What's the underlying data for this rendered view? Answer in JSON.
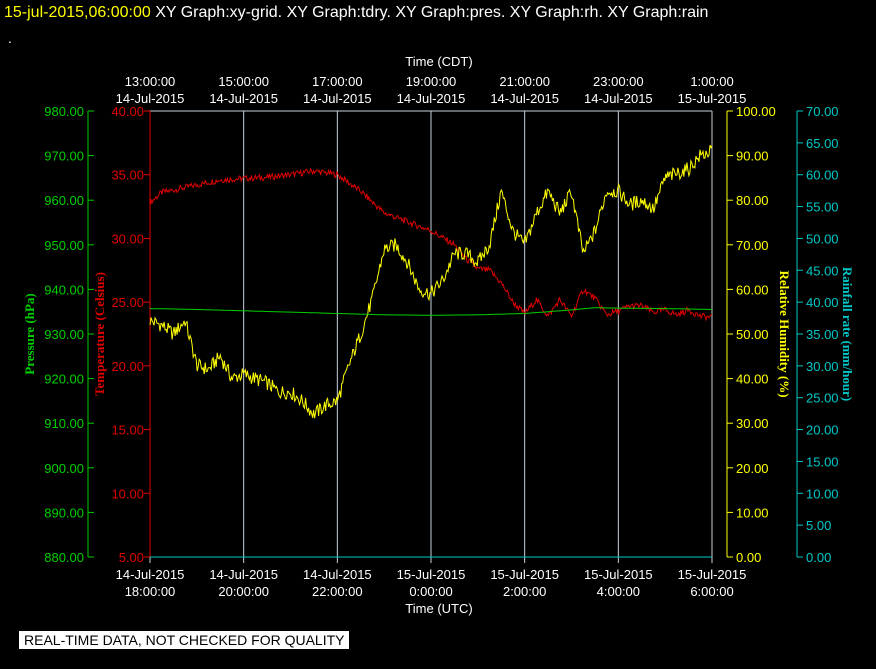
{
  "header": {
    "timestamp": "15-jul-2015,06:00:00",
    "graphs": [
      "XY Graph:xy-grid.",
      "XY Graph:tdry.",
      "XY Graph:pres.",
      "XY Graph:rh.",
      "XY Graph:rain"
    ],
    "dot": "."
  },
  "quality_banner": "REAL-TIME DATA, NOT CHECKED FOR QUALITY",
  "colors": {
    "background": "#000000",
    "grid": "#c8d2dc",
    "pressure": "#00d000",
    "temperature": "#e00000",
    "humidity": "#ffff00",
    "rain": "#00c8c8",
    "axis_text": "#ffffff"
  },
  "chart_data": {
    "type": "line",
    "x_top": {
      "title": "Time (CDT)",
      "ticks": [
        {
          "time": "13:00:00",
          "date": "14-Jul-2015"
        },
        {
          "time": "15:00:00",
          "date": "14-Jul-2015"
        },
        {
          "time": "17:00:00",
          "date": "14-Jul-2015"
        },
        {
          "time": "19:00:00",
          "date": "14-Jul-2015"
        },
        {
          "time": "21:00:00",
          "date": "14-Jul-2015"
        },
        {
          "time": "23:00:00",
          "date": "14-Jul-2015"
        },
        {
          "time": "1:00:00",
          "date": "15-Jul-2015"
        }
      ]
    },
    "x_bottom": {
      "title": "Time (UTC)",
      "ticks": [
        {
          "date": "14-Jul-2015",
          "time": "18:00:00"
        },
        {
          "date": "14-Jul-2015",
          "time": "20:00:00"
        },
        {
          "date": "14-Jul-2015",
          "time": "22:00:00"
        },
        {
          "date": "15-Jul-2015",
          "time": "0:00:00"
        },
        {
          "date": "15-Jul-2015",
          "time": "2:00:00"
        },
        {
          "date": "15-Jul-2015",
          "time": "4:00:00"
        },
        {
          "date": "15-Jul-2015",
          "time": "6:00:00"
        }
      ],
      "range": [
        "2015-07-14 18:00:00",
        "2015-07-15 06:00:00"
      ]
    },
    "grid": true,
    "axes": {
      "pressure": {
        "label": "Pressure (hPa)",
        "range": [
          880,
          980
        ],
        "ticks": [
          "980.00",
          "970.00",
          "960.00",
          "950.00",
          "940.00",
          "930.00",
          "920.00",
          "910.00",
          "900.00",
          "890.00",
          "880.00"
        ]
      },
      "temperature": {
        "label": "Temperature (Celsius)",
        "range": [
          5,
          40
        ],
        "ticks": [
          "40.00",
          "35.00",
          "30.00",
          "25.00",
          "20.00",
          "15.00",
          "10.00",
          "5.00"
        ]
      },
      "humidity": {
        "label": "Relative Humidity (%)",
        "range": [
          0,
          100
        ],
        "ticks": [
          "100.00",
          "90.00",
          "80.00",
          "70.00",
          "60.00",
          "50.00",
          "40.00",
          "30.00",
          "20.00",
          "10.00",
          "0.00"
        ]
      },
      "rain": {
        "label": "Rainfall rate (mm/hour)",
        "range": [
          0,
          70
        ],
        "ticks": [
          "70.00",
          "65.00",
          "60.00",
          "55.00",
          "50.00",
          "45.00",
          "40.00",
          "35.00",
          "30.00",
          "25.00",
          "20.00",
          "15.00",
          "10.00",
          "5.00",
          "0.00"
        ]
      }
    },
    "series": [
      {
        "name": "Temperature",
        "axis": "temperature",
        "noise": 0.25,
        "x": [
          0,
          0.25,
          0.5,
          1,
          1.5,
          2,
          2.5,
          3,
          3.5,
          4,
          4.5,
          5,
          5.5,
          6,
          6.5,
          6.75,
          7,
          7.25,
          7.5,
          7.75,
          8,
          8.25,
          8.5,
          8.75,
          9,
          9.25,
          9.5,
          9.75,
          10,
          10.25,
          10.5,
          10.75,
          11,
          11.25,
          11.5,
          11.75,
          12
        ],
        "y": [
          32.8,
          33.6,
          33.8,
          34.2,
          34.6,
          34.7,
          34.8,
          35.0,
          35.3,
          35.0,
          33.7,
          32.0,
          31.3,
          30.6,
          29.5,
          28.4,
          27.6,
          27.5,
          26.5,
          25.0,
          24.1,
          25.2,
          23.9,
          25.2,
          23.9,
          26.0,
          25.3,
          24.0,
          24.3,
          24.7,
          24.7,
          24.2,
          24.4,
          24.0,
          24.4,
          23.9,
          23.8
        ]
      },
      {
        "name": "Relative Humidity",
        "axis": "humidity",
        "noise": 1.6,
        "x": [
          0,
          0.25,
          0.5,
          0.75,
          1,
          1.25,
          1.5,
          1.75,
          2,
          2.25,
          2.5,
          2.75,
          3,
          3.25,
          3.5,
          3.75,
          4,
          4.25,
          4.5,
          4.75,
          5,
          5.25,
          5.5,
          5.75,
          6,
          6.25,
          6.5,
          6.75,
          7,
          7.25,
          7.5,
          7.75,
          8,
          8.25,
          8.5,
          8.75,
          9,
          9.25,
          9.5,
          9.75,
          10,
          10.25,
          10.5,
          10.75,
          11,
          11.25,
          11.5,
          11.75,
          12
        ],
        "y": [
          53,
          52,
          50,
          53,
          43,
          42,
          45,
          40,
          41,
          40,
          39,
          37,
          37,
          35,
          32,
          34,
          35,
          43,
          50,
          58,
          69,
          70,
          66,
          60,
          59,
          62,
          68,
          68,
          66,
          70,
          82,
          73,
          70,
          77,
          82,
          77,
          82,
          68,
          73,
          82,
          82,
          79,
          80,
          78,
          85,
          86,
          87,
          90,
          91
        ]
      },
      {
        "name": "Pressure",
        "axis": "pressure",
        "noise": 0,
        "x": [
          0,
          1,
          2,
          3,
          4,
          5,
          6,
          7,
          8,
          9,
          9.5,
          10,
          11,
          12
        ],
        "y": [
          935.7,
          935.5,
          935.2,
          934.9,
          934.6,
          934.3,
          934.2,
          934.3,
          934.6,
          935.4,
          935.9,
          935.8,
          935.7,
          935.5
        ]
      },
      {
        "name": "Rainfall rate",
        "axis": "rain",
        "noise": 0,
        "x": [
          0,
          12
        ],
        "y": [
          0,
          0
        ]
      }
    ]
  }
}
